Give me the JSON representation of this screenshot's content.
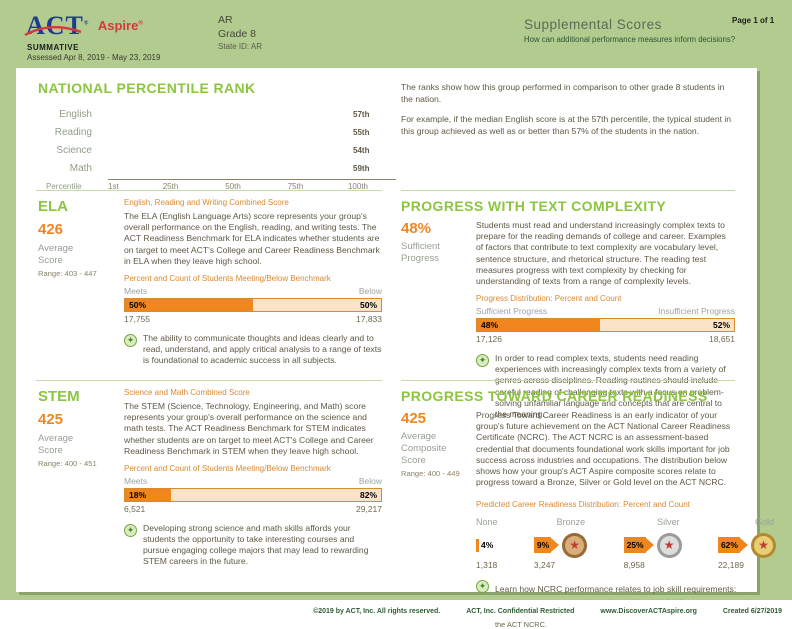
{
  "colors": {
    "page_bg": "#B1CC8E",
    "accent_green": "#8CC540",
    "accent_orange": "#F0861E",
    "bar_fill_light": "#FAE3C6",
    "body_text": "#5E5944",
    "label_gray": "#98A296",
    "link_green": "#8CC540",
    "act_navy": "#1E3C8C",
    "act_red": "#D6393C"
  },
  "header": {
    "logo_act": "ACT",
    "logo_aspire": "Aspire",
    "reg_mark": "®",
    "program": "SUMMATIVE",
    "assessed": "Assessed Apr 8, 2019 - May 23, 2019",
    "org": "AR",
    "grade": "Grade 8",
    "state_id": "State ID: AR",
    "title": "Supplemental Scores",
    "subtitle": "How can additional performance measures inform decisions?",
    "page_label": "Page 1 of 1"
  },
  "npr": {
    "heading": "NATIONAL PERCENTILE RANK",
    "axis_label": "Percentile",
    "explain1": "The ranks show how this group performed in comparison to other grade 8 students in the nation.",
    "explain2": "For example, if the median English score is at the 57th percentile, the typical student in this group achieved as well as or better than 57% of the students in the nation."
  },
  "chart_data": [
    {
      "type": "bar",
      "orientation": "horizontal",
      "title": "NATIONAL PERCENTILE RANK",
      "categories": [
        "English",
        "Reading",
        "Science",
        "Math"
      ],
      "values": [
        57,
        55,
        54,
        59
      ],
      "value_labels": [
        "57th",
        "55th",
        "54th",
        "59th"
      ],
      "xlabel": "Percentile",
      "x_ticks": [
        "1st",
        "25th",
        "50th",
        "75th",
        "100th"
      ],
      "xlim": [
        0,
        100
      ],
      "bar_color": "#F0861E",
      "grid": false,
      "legend": false
    },
    {
      "type": "bar",
      "title": "ELA Percent and Count of Students Meeting/Below Benchmark",
      "categories": [
        "Meets",
        "Below"
      ],
      "values": [
        50,
        50
      ],
      "counts": [
        17755,
        17833
      ]
    },
    {
      "type": "bar",
      "title": "Progress Distribution: Percent and Count",
      "categories": [
        "Sufficient Progress",
        "Insufficient Progress"
      ],
      "values": [
        48,
        52
      ],
      "counts": [
        17126,
        18651
      ]
    },
    {
      "type": "bar",
      "title": "STEM Percent and Count of Students Meeting/Below Benchmark",
      "categories": [
        "Meets",
        "Below"
      ],
      "values": [
        18,
        82
      ],
      "counts": [
        6521,
        29217
      ]
    },
    {
      "type": "bar",
      "title": "Predicted Career Readiness Distribution: Percent and Count",
      "categories": [
        "None",
        "Bronze",
        "Silver",
        "Gold"
      ],
      "values": [
        4,
        9,
        25,
        62
      ],
      "counts": [
        1318,
        3247,
        8958,
        22189
      ]
    }
  ],
  "ela": {
    "heading": "ELA",
    "score": "426",
    "score_label": "Average Score",
    "range": "Range: 403 - 447",
    "combined_label": "English, Reading and Writing Combined Score",
    "description": "The ELA (English Language Arts) score represents your group's overall performance on the English, reading, and writing tests. The ACT Readiness Benchmark for ELA indicates whether students are on target to meet ACT's College and Career Readiness Benchmark in ELA when they leave high school.",
    "chart_caption": "Percent and Count of Students Meeting/Below Benchmark",
    "meets_label": "Meets",
    "below_label": "Below",
    "meets_pct": "50%",
    "below_pct": "50%",
    "meets_value": 50,
    "meets_count": "17,755",
    "below_count": "17,833",
    "insight": "The ability to communicate thoughts and ideas clearly and to read, understand, and apply critical analysis to a range of texts is foundational to academic success in all subjects."
  },
  "text_complexity": {
    "heading": "PROGRESS WITH TEXT COMPLEXITY",
    "pct": "48%",
    "pct_label": "Sufficient Progress",
    "description": "Students must read and understand increasingly complex texts to prepare for the reading demands of college and career. Examples of factors that contribute to text complexity are vocabulary level, sentence structure, and rhetorical structure. The reading test measures progress with text complexity by checking for understanding of texts from a range of complexity levels.",
    "chart_caption": "Progress Distribution: Percent and Count",
    "left_label": "Sufficient Progress",
    "right_label": "Insufficient Progress",
    "left_pct": "48%",
    "right_pct": "52%",
    "left_value": 48,
    "left_count": "17,126",
    "right_count": "18,651",
    "insight": "In order to read complex texts, students need reading experiences with increasingly complex texts from a variety of genres across disciplines. Reading routines should include careful reading of challenging texts with a focus on problem-solving unfamiliar language and concepts that are central to the meaning."
  },
  "stem": {
    "heading": "STEM",
    "score": "425",
    "score_label": "Average Score",
    "range": "Range: 400 - 451",
    "combined_label": "Science and Math Combined Score",
    "description": "The STEM (Science, Technology, Engineering, and Math) score represents your group's overall performance on the science and math tests. The ACT Readiness Benchmark for STEM indicates whether students are on target to meet ACT's College and Career Readiness Benchmark in STEM when they leave high school.",
    "chart_caption": "Percent and Count of Students Meeting/Below Benchmark",
    "meets_label": "Meets",
    "below_label": "Below",
    "meets_pct": "18%",
    "below_pct": "82%",
    "meets_value": 18,
    "meets_count": "6,521",
    "below_count": "29,217",
    "insight": "Developing strong science and math skills affords your students the opportunity to take interesting courses and pursue engaging college majors that may lead to rewarding STEM careers in the future."
  },
  "career": {
    "heading": "PROGRESS TOWARD CAREER READINESS",
    "score": "425",
    "score_label": "Average Composite Score",
    "range": "Range: 400 - 449",
    "description": "Progress Toward Career Readiness is an early indicator of your group's future achievement on the ACT National Career Readiness Certificate (NCRC). The ACT NCRC is an assessment-based credential that documents foundational work skills important for job success across industries and occupations. The distribution below shows how your group's ACT Aspire composite scores relate to progress toward a Bronze, Silver or Gold level on the ACT NCRC.",
    "chart_caption": "Predicted Career Readiness Distribution: Percent and Count",
    "tiers": [
      {
        "label": "None",
        "pct": "4%",
        "count": "1,318"
      },
      {
        "label": "Bronze",
        "pct": "9%",
        "count": "3,247"
      },
      {
        "label": "Silver",
        "pct": "25%",
        "count": "8,958"
      },
      {
        "label": "Gold",
        "pct": "62%",
        "count": "22,189"
      }
    ],
    "insight_intro": "Learn how NCRC performance relates to job skill requirements:",
    "link": "http://www.act.org/workkeys/briefs/files/NCRCRequirements.pdf.",
    "disclaimer": "This information is not to be considered a substitute for actual performance on the ACT NCRC."
  },
  "footer": {
    "copyright": "©2019 by ACT, Inc. All rights reserved.",
    "confidential": "ACT, Inc. Confidential Restricted",
    "website": "www.DiscoverACTAspire.org",
    "created": "Created 6/27/2019"
  }
}
